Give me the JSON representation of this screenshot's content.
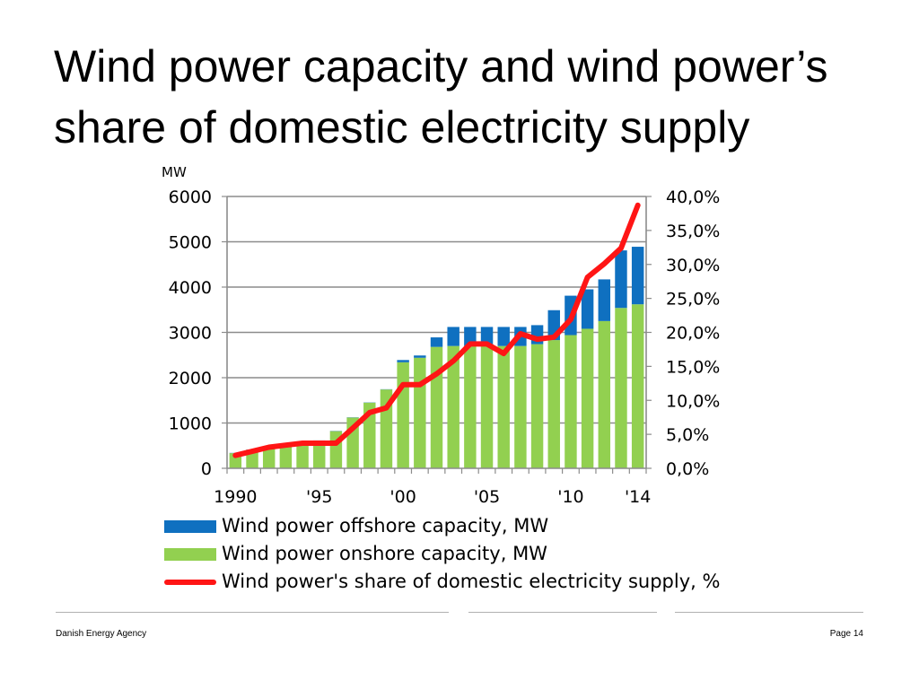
{
  "title": {
    "line1": "Wind power capacity and wind power’s",
    "line2": "share of domestic electricity supply"
  },
  "chart_data": {
    "type": "bar",
    "stacked": true,
    "y_unit_label": "MW",
    "years": [
      1990,
      1991,
      1992,
      1993,
      1994,
      1995,
      1996,
      1997,
      1998,
      1999,
      2000,
      2001,
      2002,
      2003,
      2004,
      2005,
      2006,
      2007,
      2008,
      2009,
      2010,
      2011,
      2012,
      2013,
      2014
    ],
    "x_tick_labels": [
      {
        "year": 1990,
        "label": "1990"
      },
      {
        "year": 1995,
        "label": "'95"
      },
      {
        "year": 2000,
        "label": "'00"
      },
      {
        "year": 2005,
        "label": "'05"
      },
      {
        "year": 2010,
        "label": "'10"
      },
      {
        "year": 2014,
        "label": "'14"
      }
    ],
    "y_left": {
      "min": 0,
      "max": 6000,
      "ticks": [
        {
          "value": 0,
          "label": "0"
        },
        {
          "value": 1000,
          "label": "1000"
        },
        {
          "value": 2000,
          "label": "2000"
        },
        {
          "value": 3000,
          "label": "3000"
        },
        {
          "value": 4000,
          "label": "4000"
        },
        {
          "value": 5000,
          "label": "5000"
        },
        {
          "value": 6000,
          "label": "6000"
        }
      ]
    },
    "y_right": {
      "min": 0,
      "max": 40,
      "ticks": [
        {
          "value": 0,
          "label": "0,0%"
        },
        {
          "value": 5,
          "label": "5,0%"
        },
        {
          "value": 10,
          "label": "10,0%"
        },
        {
          "value": 15,
          "label": "15,0%"
        },
        {
          "value": 20,
          "label": "20,0%"
        },
        {
          "value": 25,
          "label": "25,0%"
        },
        {
          "value": 30,
          "label": "30,0%"
        },
        {
          "value": 35,
          "label": "35,0%"
        },
        {
          "value": 40,
          "label": "40,0%"
        }
      ]
    },
    "grid": true,
    "series": [
      {
        "name": "Wind power offshore capacity, MW",
        "kind": "bar",
        "color": "#0f70c0",
        "values": [
          5,
          5,
          5,
          5,
          5,
          5,
          5,
          5,
          5,
          5,
          50,
          50,
          210,
          420,
          420,
          420,
          420,
          420,
          420,
          660,
          870,
          870,
          920,
          1270,
          1270
        ]
      },
      {
        "name": "Wind power onshore capacity, MW",
        "kind": "bar",
        "color": "#92d050",
        "values": [
          335,
          410,
          460,
          490,
          540,
          610,
          820,
          1120,
          1450,
          1740,
          2340,
          2440,
          2680,
          2700,
          2700,
          2700,
          2700,
          2700,
          2740,
          2830,
          2940,
          3080,
          3250,
          3540,
          3620
        ]
      },
      {
        "name": "Wind power's share of domestic electricity supply, %",
        "kind": "line",
        "axis": "right",
        "color": "#ff1515",
        "values": [
          1.9,
          2.5,
          3.1,
          3.4,
          3.7,
          3.7,
          3.7,
          5.9,
          8.2,
          8.9,
          12.3,
          12.3,
          13.9,
          15.8,
          18.3,
          18.3,
          16.9,
          19.8,
          19.0,
          19.3,
          21.9,
          28.1,
          30.1,
          32.4,
          38.7
        ]
      }
    ],
    "legend_position": "bottom"
  },
  "footer": {
    "left": "Danish Energy Agency",
    "right": "Page 14"
  }
}
